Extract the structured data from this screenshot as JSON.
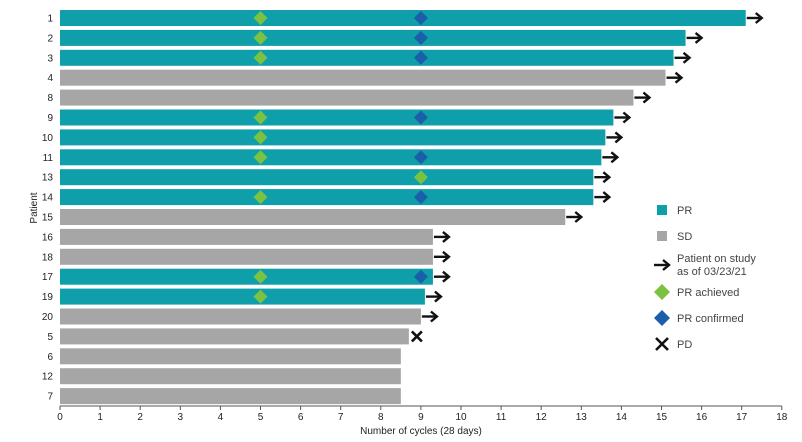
{
  "chart_data": {
    "type": "bar",
    "orientation": "horizontal",
    "xlabel": "Number of cycles (28 days)",
    "ylabel": "Patient",
    "xlim": [
      0,
      18
    ],
    "xticks": [
      0,
      1,
      2,
      3,
      4,
      5,
      6,
      7,
      8,
      9,
      10,
      11,
      12,
      13,
      14,
      15,
      16,
      17,
      18
    ],
    "grid": false,
    "colors": {
      "PR": "#0e9fab",
      "SD": "#a6a6a6",
      "PR_achieved": "#7cc242",
      "PR_confirmed": "#1b5fa8",
      "arrow": "#111111",
      "PD": "#111111"
    },
    "patients": [
      {
        "id": "1",
        "response": "PR",
        "cycles": 17.1,
        "ongoing": true,
        "pr_achieved": 5,
        "pr_confirmed": 9
      },
      {
        "id": "2",
        "response": "PR",
        "cycles": 15.6,
        "ongoing": true,
        "pr_achieved": 5,
        "pr_confirmed": 9
      },
      {
        "id": "3",
        "response": "PR",
        "cycles": 15.3,
        "ongoing": true,
        "pr_achieved": 5,
        "pr_confirmed": 9
      },
      {
        "id": "4",
        "response": "SD",
        "cycles": 15.1,
        "ongoing": true,
        "pr_achieved": null,
        "pr_confirmed": null
      },
      {
        "id": "8",
        "response": "SD",
        "cycles": 14.3,
        "ongoing": true,
        "pr_achieved": null,
        "pr_confirmed": null
      },
      {
        "id": "9",
        "response": "PR",
        "cycles": 13.8,
        "ongoing": true,
        "pr_achieved": 5,
        "pr_confirmed": 9
      },
      {
        "id": "10",
        "response": "PR",
        "cycles": 13.6,
        "ongoing": true,
        "pr_achieved": 5,
        "pr_confirmed": null
      },
      {
        "id": "11",
        "response": "PR",
        "cycles": 13.5,
        "ongoing": true,
        "pr_achieved": 5,
        "pr_confirmed": 9
      },
      {
        "id": "13",
        "response": "PR",
        "cycles": 13.3,
        "ongoing": true,
        "pr_achieved": 9,
        "pr_confirmed": null
      },
      {
        "id": "14",
        "response": "PR",
        "cycles": 13.3,
        "ongoing": true,
        "pr_achieved": 5,
        "pr_confirmed": 9
      },
      {
        "id": "15",
        "response": "SD",
        "cycles": 12.6,
        "ongoing": true,
        "pr_achieved": null,
        "pr_confirmed": null
      },
      {
        "id": "16",
        "response": "SD",
        "cycles": 9.3,
        "ongoing": true,
        "pr_achieved": null,
        "pr_confirmed": null
      },
      {
        "id": "18",
        "response": "SD",
        "cycles": 9.3,
        "ongoing": true,
        "pr_achieved": null,
        "pr_confirmed": null
      },
      {
        "id": "17",
        "response": "PR",
        "cycles": 9.3,
        "ongoing": true,
        "pr_achieved": 5,
        "pr_confirmed": 9
      },
      {
        "id": "19",
        "response": "PR",
        "cycles": 9.1,
        "ongoing": true,
        "pr_achieved": 5,
        "pr_confirmed": null
      },
      {
        "id": "20",
        "response": "SD",
        "cycles": 9.0,
        "ongoing": true,
        "pr_achieved": null,
        "pr_confirmed": null
      },
      {
        "id": "5",
        "response": "SD",
        "cycles": 8.7,
        "ongoing": false,
        "pd": true,
        "pr_achieved": null,
        "pr_confirmed": null
      },
      {
        "id": "6",
        "response": "SD",
        "cycles": 8.5,
        "ongoing": false,
        "pr_achieved": null,
        "pr_confirmed": null
      },
      {
        "id": "12",
        "response": "SD",
        "cycles": 8.5,
        "ongoing": false,
        "pr_achieved": null,
        "pr_confirmed": null
      },
      {
        "id": "7",
        "response": "SD",
        "cycles": 8.5,
        "ongoing": false,
        "pr_achieved": null,
        "pr_confirmed": null
      }
    ],
    "legend": {
      "placement": "right",
      "items": [
        {
          "key": "pr",
          "label": "PR",
          "symbol": "square",
          "color": "#0e9fab"
        },
        {
          "key": "sd",
          "label": "SD",
          "symbol": "square",
          "color": "#a6a6a6"
        },
        {
          "key": "on-study",
          "label": "Patient on study",
          "label2": "as of 03/23/21",
          "symbol": "arrow",
          "color": "#111111"
        },
        {
          "key": "pr-achieved",
          "label": "PR achieved",
          "symbol": "diamond",
          "color": "#7cc242"
        },
        {
          "key": "pr-confirmed",
          "label": "PR confirmed",
          "symbol": "diamond",
          "color": "#1b5fa8"
        },
        {
          "key": "pd",
          "label": "PD",
          "symbol": "x",
          "color": "#111111"
        }
      ]
    }
  }
}
